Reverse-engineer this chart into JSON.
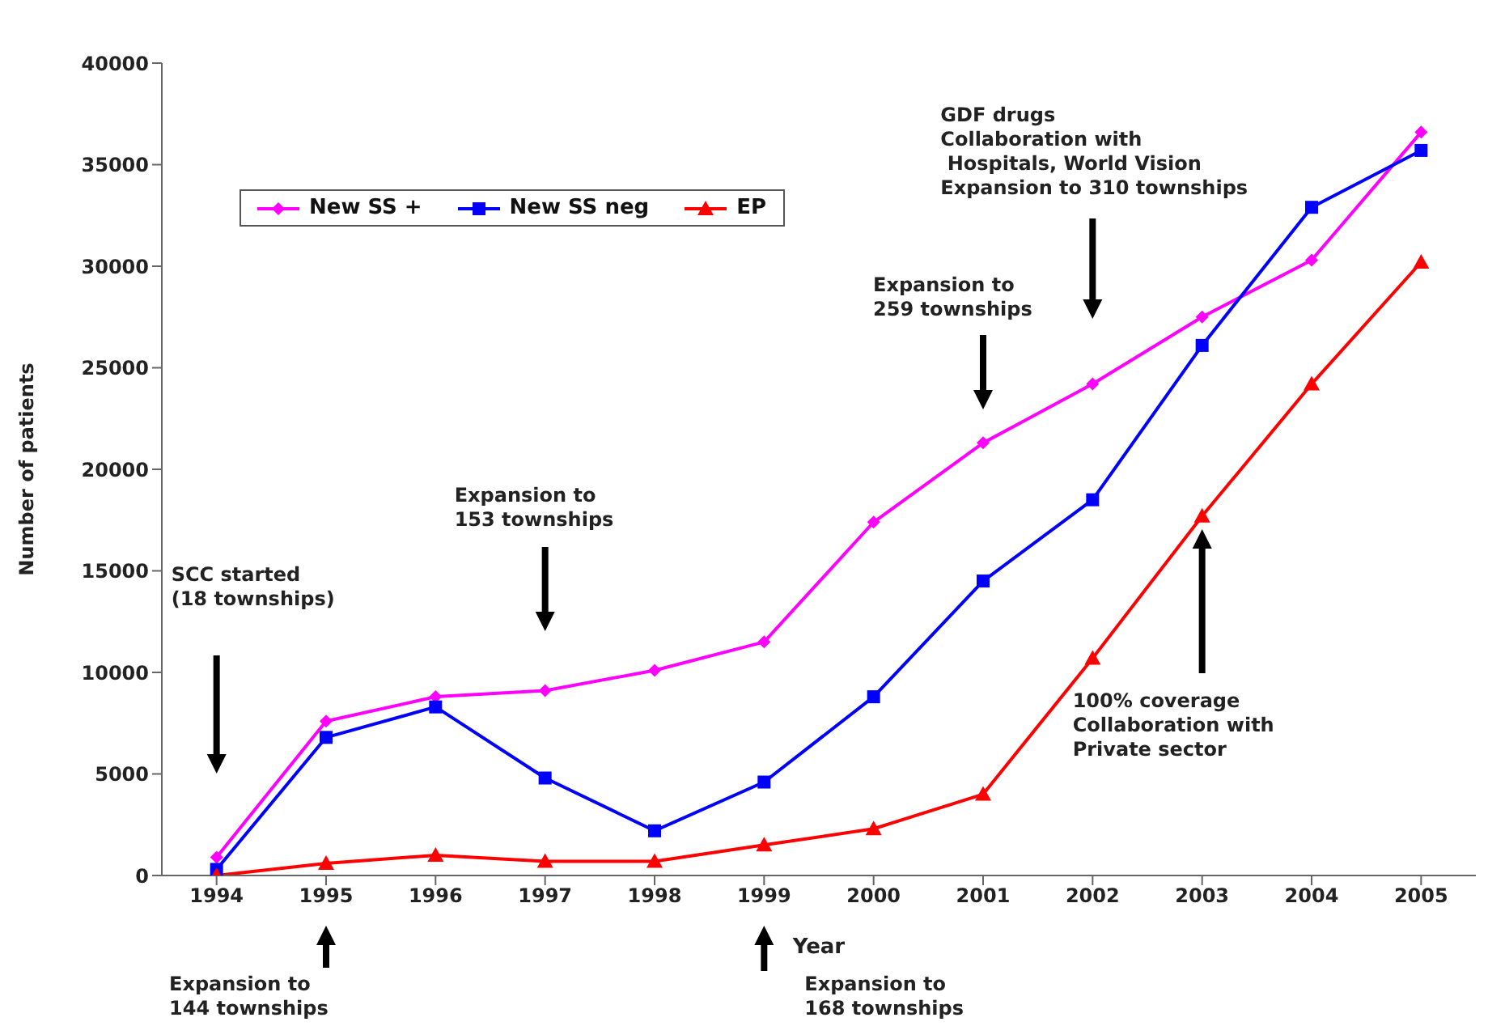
{
  "chart_data": {
    "type": "line",
    "xlabel": "Year",
    "ylabel": "Number of patients",
    "categories": [
      "1994",
      "1995",
      "1996",
      "1997",
      "1998",
      "1999",
      "2000",
      "2001",
      "2002",
      "2003",
      "2004",
      "2005"
    ],
    "series": [
      {
        "name": "New SS +",
        "color": "#ff00ff",
        "marker": "diamond",
        "values": [
          900,
          7600,
          8800,
          9100,
          10100,
          11500,
          17400,
          21300,
          24200,
          27500,
          30300,
          36600
        ]
      },
      {
        "name": "New SS neg",
        "color": "#0000ff",
        "marker": "square",
        "values": [
          300,
          6800,
          8300,
          4800,
          2200,
          4600,
          8800,
          14500,
          18500,
          26100,
          32900,
          35700
        ]
      },
      {
        "name": "EP",
        "color": "#ff0000",
        "marker": "triangle",
        "values": [
          0,
          600,
          1000,
          700,
          700,
          1500,
          2300,
          4000,
          10700,
          17700,
          24200,
          30200
        ]
      }
    ],
    "ylim": [
      0,
      40000
    ],
    "yticks": [
      0,
      5000,
      10000,
      15000,
      20000,
      25000,
      30000,
      35000,
      40000
    ],
    "grid": false,
    "legend": "top left",
    "line_style": "solid",
    "annotations": [
      "SCC started\n(18 townships)",
      "Expansion to\n144 townships",
      "Expansion to\n153 townships",
      "Expansion to\n168 townships",
      "Expansion to\n259 townships",
      "GDF drugs\nCollaboration with\n Hospitals, World Vision\nExpansion to 310 townships",
      "100% coverage\nCollaboration with\nPrivate sector"
    ]
  }
}
